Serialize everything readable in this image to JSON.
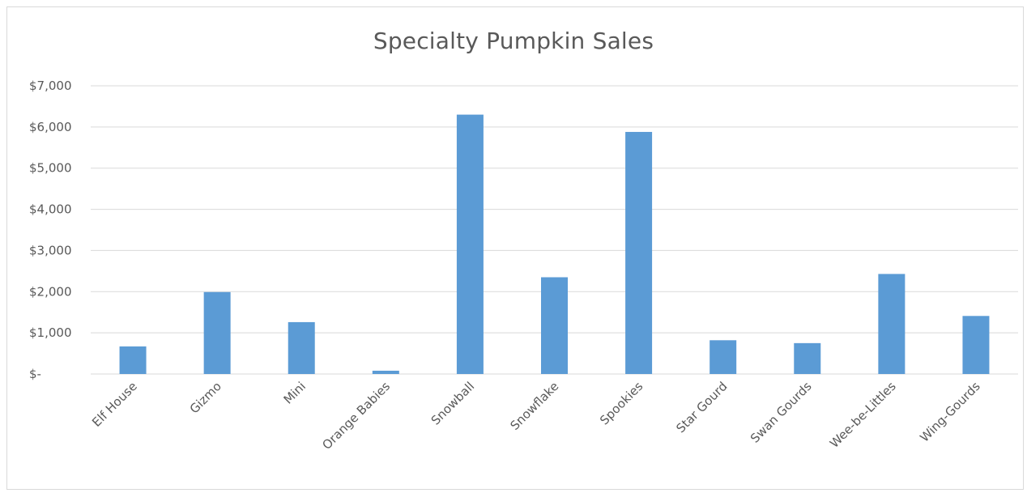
{
  "chart_data": {
    "type": "bar",
    "title": "Specialty Pumpkin  Sales",
    "categories": [
      "Elf House",
      "Gizmo",
      "Mini",
      "Orange Babies",
      "Snowball",
      "Snowflake",
      "Spookies",
      "Star Gourd",
      "Swan Gourds",
      "Wee-be-Littles",
      "Wing-Gourds"
    ],
    "values": [
      670,
      1990,
      1260,
      80,
      6300,
      2350,
      5880,
      820,
      750,
      2430,
      1410
    ],
    "y_tick_labels": [
      "$-",
      "$1,000",
      "$2,000",
      "$3,000",
      "$4,000",
      "$5,000",
      "$6,000",
      "$7,000"
    ],
    "y_ticks": [
      0,
      1000,
      2000,
      3000,
      4000,
      5000,
      6000,
      7000
    ],
    "ylim": [
      0,
      7000
    ],
    "xlabel": "",
    "ylabel": "",
    "grid": true,
    "legend": "none",
    "bar_color": "#5b9bd5"
  }
}
